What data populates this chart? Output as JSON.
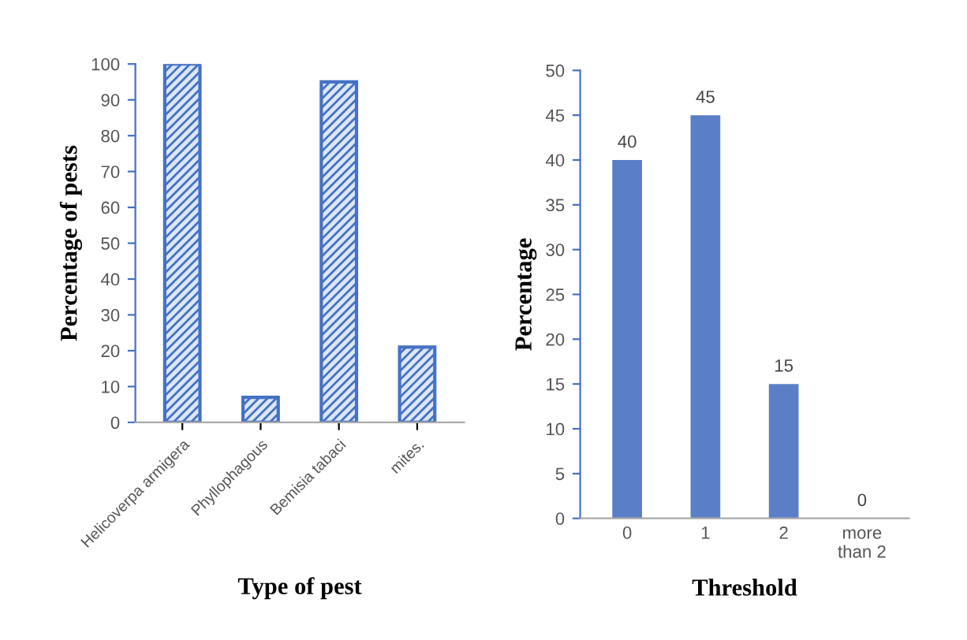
{
  "chart_data": [
    {
      "type": "bar",
      "xlabel": "Type of pest",
      "ylabel": "Percentage of pests",
      "categories": [
        "Helicoverpa armigera",
        "Phyllophagous",
        "Bemisia tabaci",
        "mites."
      ],
      "values": [
        100,
        7,
        95,
        21
      ],
      "color": "#4472c4",
      "ylim": [
        0,
        100
      ],
      "yticks": [
        0,
        10,
        20,
        30,
        40,
        50,
        60,
        70,
        80,
        90,
        100
      ],
      "grid": false
    },
    {
      "type": "bar",
      "xlabel": "Threshold",
      "ylabel": "Percentage",
      "categories": [
        "0",
        "1",
        "2",
        "more\nthan 2"
      ],
      "values": [
        40,
        45,
        15,
        0
      ],
      "color": "#5b7fc7",
      "ylim": [
        0,
        50
      ],
      "yticks": [
        0,
        5,
        10,
        15,
        20,
        25,
        30,
        35,
        40,
        45,
        50
      ],
      "grid": false,
      "data_labels": true
    }
  ]
}
